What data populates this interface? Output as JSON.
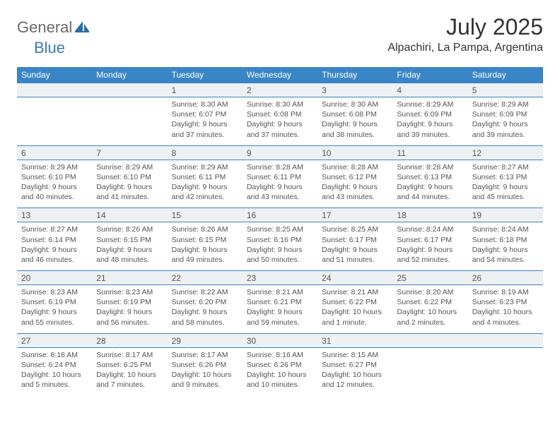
{
  "brand": {
    "part1": "General",
    "part2": "Blue"
  },
  "title": "July 2025",
  "location": "Alpachiri, La Pampa, Argentina",
  "colors": {
    "header_bg": "#3a85c6",
    "header_text": "#ffffff",
    "daynum_bg": "#eef1f4",
    "border": "#3a85c6",
    "body_text": "#555555",
    "title_text": "#333333",
    "logo_gray": "#6a6a6a",
    "logo_blue": "#3a7ab8",
    "page_bg": "#ffffff"
  },
  "fonts": {
    "title_size": 32,
    "location_size": 16,
    "dow_size": 12,
    "cell_size": 10.5
  },
  "dow": [
    "Sunday",
    "Monday",
    "Tuesday",
    "Wednesday",
    "Thursday",
    "Friday",
    "Saturday"
  ],
  "weeks": [
    [
      {},
      {},
      {
        "d": "1",
        "sr": "Sunrise: 8:30 AM",
        "ss": "Sunset: 6:07 PM",
        "dl": "Daylight: 9 hours and 37 minutes."
      },
      {
        "d": "2",
        "sr": "Sunrise: 8:30 AM",
        "ss": "Sunset: 6:08 PM",
        "dl": "Daylight: 9 hours and 37 minutes."
      },
      {
        "d": "3",
        "sr": "Sunrise: 8:30 AM",
        "ss": "Sunset: 6:08 PM",
        "dl": "Daylight: 9 hours and 38 minutes."
      },
      {
        "d": "4",
        "sr": "Sunrise: 8:29 AM",
        "ss": "Sunset: 6:09 PM",
        "dl": "Daylight: 9 hours and 39 minutes."
      },
      {
        "d": "5",
        "sr": "Sunrise: 8:29 AM",
        "ss": "Sunset: 6:09 PM",
        "dl": "Daylight: 9 hours and 39 minutes."
      }
    ],
    [
      {
        "d": "6",
        "sr": "Sunrise: 8:29 AM",
        "ss": "Sunset: 6:10 PM",
        "dl": "Daylight: 9 hours and 40 minutes."
      },
      {
        "d": "7",
        "sr": "Sunrise: 8:29 AM",
        "ss": "Sunset: 6:10 PM",
        "dl": "Daylight: 9 hours and 41 minutes."
      },
      {
        "d": "8",
        "sr": "Sunrise: 8:29 AM",
        "ss": "Sunset: 6:11 PM",
        "dl": "Daylight: 9 hours and 42 minutes."
      },
      {
        "d": "9",
        "sr": "Sunrise: 8:28 AM",
        "ss": "Sunset: 6:11 PM",
        "dl": "Daylight: 9 hours and 43 minutes."
      },
      {
        "d": "10",
        "sr": "Sunrise: 8:28 AM",
        "ss": "Sunset: 6:12 PM",
        "dl": "Daylight: 9 hours and 43 minutes."
      },
      {
        "d": "11",
        "sr": "Sunrise: 8:28 AM",
        "ss": "Sunset: 6:13 PM",
        "dl": "Daylight: 9 hours and 44 minutes."
      },
      {
        "d": "12",
        "sr": "Sunrise: 8:27 AM",
        "ss": "Sunset: 6:13 PM",
        "dl": "Daylight: 9 hours and 45 minutes."
      }
    ],
    [
      {
        "d": "13",
        "sr": "Sunrise: 8:27 AM",
        "ss": "Sunset: 6:14 PM",
        "dl": "Daylight: 9 hours and 46 minutes."
      },
      {
        "d": "14",
        "sr": "Sunrise: 8:26 AM",
        "ss": "Sunset: 6:15 PM",
        "dl": "Daylight: 9 hours and 48 minutes."
      },
      {
        "d": "15",
        "sr": "Sunrise: 8:26 AM",
        "ss": "Sunset: 6:15 PM",
        "dl": "Daylight: 9 hours and 49 minutes."
      },
      {
        "d": "16",
        "sr": "Sunrise: 8:25 AM",
        "ss": "Sunset: 6:16 PM",
        "dl": "Daylight: 9 hours and 50 minutes."
      },
      {
        "d": "17",
        "sr": "Sunrise: 8:25 AM",
        "ss": "Sunset: 6:17 PM",
        "dl": "Daylight: 9 hours and 51 minutes."
      },
      {
        "d": "18",
        "sr": "Sunrise: 8:24 AM",
        "ss": "Sunset: 6:17 PM",
        "dl": "Daylight: 9 hours and 52 minutes."
      },
      {
        "d": "19",
        "sr": "Sunrise: 8:24 AM",
        "ss": "Sunset: 6:18 PM",
        "dl": "Daylight: 9 hours and 54 minutes."
      }
    ],
    [
      {
        "d": "20",
        "sr": "Sunrise: 8:23 AM",
        "ss": "Sunset: 6:19 PM",
        "dl": "Daylight: 9 hours and 55 minutes."
      },
      {
        "d": "21",
        "sr": "Sunrise: 8:23 AM",
        "ss": "Sunset: 6:19 PM",
        "dl": "Daylight: 9 hours and 56 minutes."
      },
      {
        "d": "22",
        "sr": "Sunrise: 8:22 AM",
        "ss": "Sunset: 6:20 PM",
        "dl": "Daylight: 9 hours and 58 minutes."
      },
      {
        "d": "23",
        "sr": "Sunrise: 8:21 AM",
        "ss": "Sunset: 6:21 PM",
        "dl": "Daylight: 9 hours and 59 minutes."
      },
      {
        "d": "24",
        "sr": "Sunrise: 8:21 AM",
        "ss": "Sunset: 6:22 PM",
        "dl": "Daylight: 10 hours and 1 minute."
      },
      {
        "d": "25",
        "sr": "Sunrise: 8:20 AM",
        "ss": "Sunset: 6:22 PM",
        "dl": "Daylight: 10 hours and 2 minutes."
      },
      {
        "d": "26",
        "sr": "Sunrise: 8:19 AM",
        "ss": "Sunset: 6:23 PM",
        "dl": "Daylight: 10 hours and 4 minutes."
      }
    ],
    [
      {
        "d": "27",
        "sr": "Sunrise: 8:18 AM",
        "ss": "Sunset: 6:24 PM",
        "dl": "Daylight: 10 hours and 5 minutes."
      },
      {
        "d": "28",
        "sr": "Sunrise: 8:17 AM",
        "ss": "Sunset: 6:25 PM",
        "dl": "Daylight: 10 hours and 7 minutes."
      },
      {
        "d": "29",
        "sr": "Sunrise: 8:17 AM",
        "ss": "Sunset: 6:26 PM",
        "dl": "Daylight: 10 hours and 9 minutes."
      },
      {
        "d": "30",
        "sr": "Sunrise: 8:16 AM",
        "ss": "Sunset: 6:26 PM",
        "dl": "Daylight: 10 hours and 10 minutes."
      },
      {
        "d": "31",
        "sr": "Sunrise: 8:15 AM",
        "ss": "Sunset: 6:27 PM",
        "dl": "Daylight: 10 hours and 12 minutes."
      },
      {},
      {}
    ]
  ]
}
